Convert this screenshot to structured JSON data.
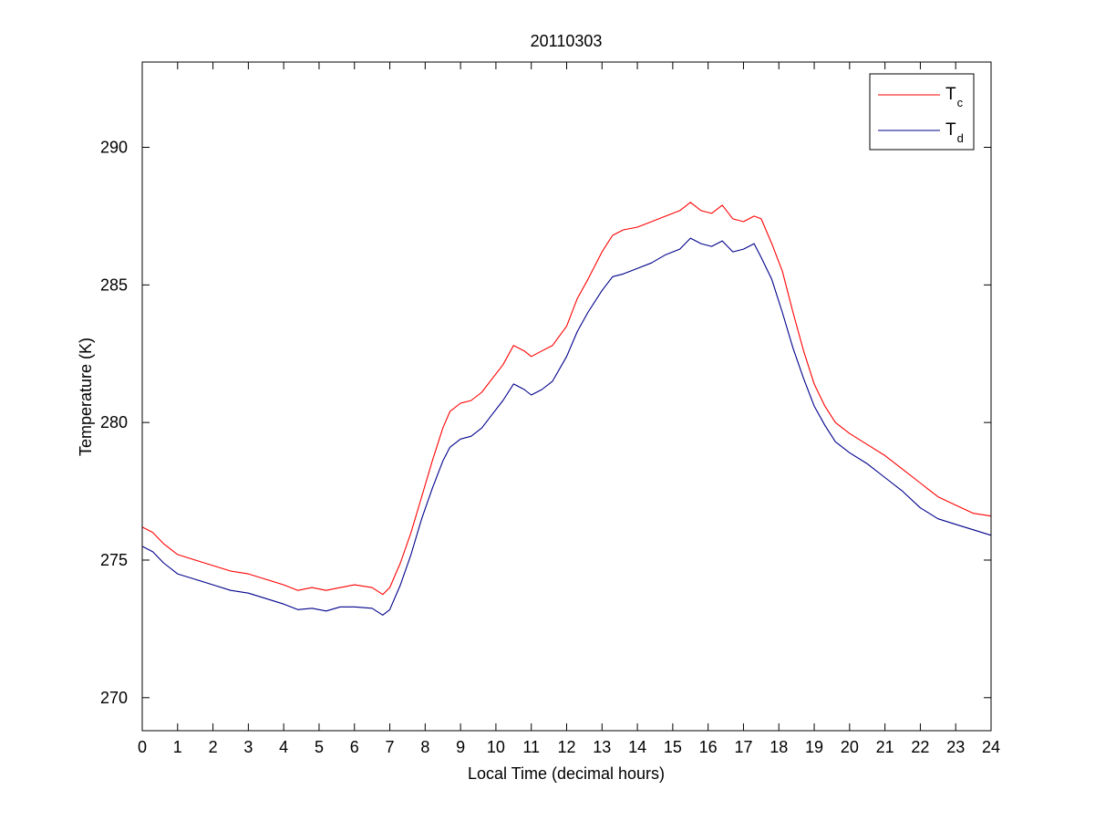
{
  "chart_data": {
    "type": "line",
    "title": "20110303",
    "xlabel": "Local Time (decimal hours)",
    "ylabel": "Temperature (K)",
    "xlim": [
      0,
      24
    ],
    "ylim": [
      268.8,
      293.1
    ],
    "xticks": [
      0,
      1,
      2,
      3,
      4,
      5,
      6,
      7,
      8,
      9,
      10,
      11,
      12,
      13,
      14,
      15,
      16,
      17,
      18,
      19,
      20,
      21,
      22,
      23,
      24
    ],
    "yticks": [
      270,
      275,
      280,
      285,
      290
    ],
    "grid": false,
    "legend_position": "top-right",
    "series": [
      {
        "name": "T",
        "subscript": "c",
        "color": "#ff0000",
        "points": [
          [
            0.0,
            276.2
          ],
          [
            0.3,
            276.0
          ],
          [
            0.6,
            275.6
          ],
          [
            1.0,
            275.2
          ],
          [
            1.5,
            275.0
          ],
          [
            2.0,
            274.8
          ],
          [
            2.5,
            274.6
          ],
          [
            3.0,
            274.5
          ],
          [
            3.5,
            274.3
          ],
          [
            4.0,
            274.1
          ],
          [
            4.4,
            273.9
          ],
          [
            4.8,
            274.0
          ],
          [
            5.2,
            273.9
          ],
          [
            5.6,
            274.0
          ],
          [
            6.0,
            274.1
          ],
          [
            6.5,
            274.0
          ],
          [
            6.8,
            273.75
          ],
          [
            7.0,
            274.0
          ],
          [
            7.3,
            274.9
          ],
          [
            7.6,
            276.0
          ],
          [
            7.9,
            277.3
          ],
          [
            8.2,
            278.6
          ],
          [
            8.5,
            279.8
          ],
          [
            8.7,
            280.4
          ],
          [
            9.0,
            280.7
          ],
          [
            9.3,
            280.8
          ],
          [
            9.6,
            281.1
          ],
          [
            9.9,
            281.6
          ],
          [
            10.2,
            282.1
          ],
          [
            10.5,
            282.8
          ],
          [
            10.8,
            282.6
          ],
          [
            11.0,
            282.4
          ],
          [
            11.3,
            282.6
          ],
          [
            11.6,
            282.8
          ],
          [
            12.0,
            283.5
          ],
          [
            12.3,
            284.5
          ],
          [
            12.6,
            285.2
          ],
          [
            13.0,
            286.2
          ],
          [
            13.3,
            286.8
          ],
          [
            13.6,
            287.0
          ],
          [
            14.0,
            287.1
          ],
          [
            14.4,
            287.3
          ],
          [
            14.8,
            287.5
          ],
          [
            15.2,
            287.7
          ],
          [
            15.5,
            288.0
          ],
          [
            15.8,
            287.7
          ],
          [
            16.1,
            287.6
          ],
          [
            16.4,
            287.9
          ],
          [
            16.7,
            287.4
          ],
          [
            17.0,
            287.3
          ],
          [
            17.3,
            287.5
          ],
          [
            17.5,
            287.4
          ],
          [
            17.8,
            286.5
          ],
          [
            18.1,
            285.5
          ],
          [
            18.4,
            284.0
          ],
          [
            18.7,
            282.6
          ],
          [
            19.0,
            281.4
          ],
          [
            19.3,
            280.6
          ],
          [
            19.6,
            280.0
          ],
          [
            20.0,
            279.6
          ],
          [
            20.5,
            279.2
          ],
          [
            21.0,
            278.8
          ],
          [
            21.5,
            278.3
          ],
          [
            22.0,
            277.8
          ],
          [
            22.5,
            277.3
          ],
          [
            23.0,
            277.0
          ],
          [
            23.5,
            276.7
          ],
          [
            24.0,
            276.6
          ]
        ]
      },
      {
        "name": "T",
        "subscript": "d",
        "color": "#00008b",
        "points": [
          [
            0.0,
            275.5
          ],
          [
            0.3,
            275.3
          ],
          [
            0.6,
            274.9
          ],
          [
            1.0,
            274.5
          ],
          [
            1.5,
            274.3
          ],
          [
            2.0,
            274.1
          ],
          [
            2.5,
            273.9
          ],
          [
            3.0,
            273.8
          ],
          [
            3.5,
            273.6
          ],
          [
            4.0,
            273.4
          ],
          [
            4.4,
            273.2
          ],
          [
            4.8,
            273.25
          ],
          [
            5.2,
            273.15
          ],
          [
            5.6,
            273.3
          ],
          [
            6.0,
            273.3
          ],
          [
            6.5,
            273.25
          ],
          [
            6.8,
            273.0
          ],
          [
            7.0,
            273.2
          ],
          [
            7.3,
            274.1
          ],
          [
            7.6,
            275.2
          ],
          [
            7.9,
            276.5
          ],
          [
            8.2,
            277.6
          ],
          [
            8.5,
            278.6
          ],
          [
            8.7,
            279.1
          ],
          [
            9.0,
            279.4
          ],
          [
            9.3,
            279.5
          ],
          [
            9.6,
            279.8
          ],
          [
            9.9,
            280.3
          ],
          [
            10.2,
            280.8
          ],
          [
            10.5,
            281.4
          ],
          [
            10.8,
            281.2
          ],
          [
            11.0,
            281.0
          ],
          [
            11.3,
            281.2
          ],
          [
            11.6,
            281.5
          ],
          [
            12.0,
            282.4
          ],
          [
            12.3,
            283.3
          ],
          [
            12.6,
            284.0
          ],
          [
            13.0,
            284.8
          ],
          [
            13.3,
            285.3
          ],
          [
            13.6,
            285.4
          ],
          [
            14.0,
            285.6
          ],
          [
            14.4,
            285.8
          ],
          [
            14.8,
            286.1
          ],
          [
            15.2,
            286.3
          ],
          [
            15.5,
            286.7
          ],
          [
            15.8,
            286.5
          ],
          [
            16.1,
            286.4
          ],
          [
            16.4,
            286.6
          ],
          [
            16.7,
            286.2
          ],
          [
            17.0,
            286.3
          ],
          [
            17.3,
            286.5
          ],
          [
            17.5,
            286.0
          ],
          [
            17.8,
            285.2
          ],
          [
            18.1,
            284.0
          ],
          [
            18.4,
            282.7
          ],
          [
            18.7,
            281.6
          ],
          [
            19.0,
            280.6
          ],
          [
            19.3,
            279.9
          ],
          [
            19.6,
            279.3
          ],
          [
            20.0,
            278.9
          ],
          [
            20.5,
            278.5
          ],
          [
            21.0,
            278.0
          ],
          [
            21.5,
            277.5
          ],
          [
            22.0,
            276.9
          ],
          [
            22.5,
            276.5
          ],
          [
            23.0,
            276.3
          ],
          [
            23.5,
            276.1
          ],
          [
            24.0,
            275.9
          ]
        ]
      }
    ]
  }
}
